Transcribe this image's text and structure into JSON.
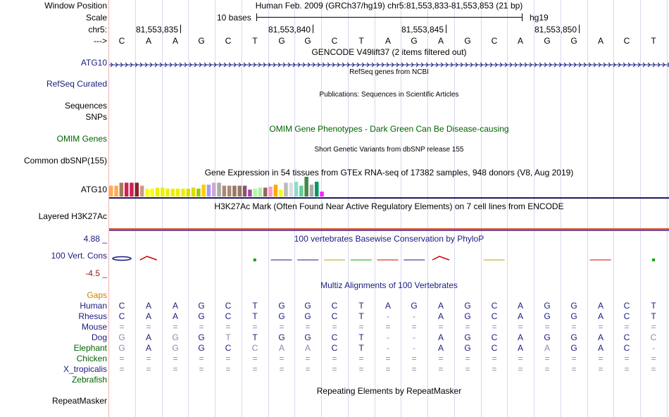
{
  "header": {
    "window_position_label": "Window Position",
    "scale_label": "Scale",
    "chrom_label": "chr5:",
    "arrow_label": "--->",
    "assembly_title": "Human Feb. 2009 (GRCh37/hg19)   chr5:81,553,833-81,553,853 (21 bp)",
    "scale_text": "10 bases",
    "scale_db": "hg19",
    "positions": [
      "81,553,835",
      "81,553,840",
      "81,553,845",
      "81,553,850"
    ],
    "sequence": [
      "C",
      "A",
      "A",
      "G",
      "C",
      "T",
      "G",
      "G",
      "C",
      "T",
      "A",
      "G",
      "A",
      "G",
      "C",
      "A",
      "G",
      "G",
      "A",
      "C",
      "T"
    ]
  },
  "tracks": {
    "gencode": {
      "title": "GENCODE V49lift37 (2 items filtered out)",
      "gene_label": "ATG10"
    },
    "refseq": {
      "title": "RefSeq genes from NCBI",
      "label": "RefSeq Curated"
    },
    "publications": {
      "title": "Publications: Sequences in Scientific Articles",
      "label1": "Sequences",
      "label2": "SNPs"
    },
    "omim": {
      "title": "OMIM Gene Phenotypes - Dark Green Can Be Disease-causing",
      "label": "OMIM Genes",
      "color": "#006400"
    },
    "dbsnp": {
      "title": "Short Genetic Variants from dbSNP release 155",
      "label": "Common dbSNP(155)"
    },
    "gtex": {
      "title": "Gene Expression in 54 tissues from GTEx RNA-seq of 17382 samples, 948 donors (V8, Aug 2019)",
      "label": "ATG10",
      "bar_colors": [
        "#FFAA55",
        "#FFAA55",
        "#AA7755",
        "#CC2255",
        "#CC2255",
        "#882222",
        "#CC9988",
        "#FFFF00",
        "#FFFF00",
        "#EEEE00",
        "#EEEE00",
        "#EEEE00",
        "#EEEE00",
        "#EEEE00",
        "#EEEE00",
        "#DDDD00",
        "#DDDD00",
        "#99CC00",
        "#FFCC00",
        "#AA99FF",
        "#CCAACC",
        "#AAAAAA",
        "#AA8877",
        "#AA8877",
        "#997766",
        "#997766",
        "#885566",
        "#AA44AA",
        "#AAFF99",
        "#AAEEAA",
        "#996655",
        "#FF99CC",
        "#FFAA00",
        "#FFFF00",
        "#BBBBBB",
        "#DDDDDD",
        "#88DDCC",
        "#66CC99",
        "#448844",
        "#AAAAAA",
        "#009966",
        "#FF22FF"
      ],
      "bar_values": [
        0.55,
        0.55,
        0.7,
        0.7,
        0.7,
        0.7,
        0.55,
        0.4,
        0.4,
        0.45,
        0.45,
        0.4,
        0.4,
        0.4,
        0.4,
        0.4,
        0.45,
        0.4,
        0.6,
        0.6,
        0.7,
        0.7,
        0.55,
        0.55,
        0.55,
        0.55,
        0.55,
        0.35,
        0.4,
        0.45,
        0.45,
        0.5,
        0.6,
        0.35,
        0.7,
        0.7,
        0.75,
        0.55,
        1.0,
        0.6,
        0.75,
        0.25
      ]
    },
    "h3k27ac": {
      "title": "H3K27Ac Mark (Often Found Near Active Regulatory Elements) on 7 cell lines from ENCODE",
      "label": "Layered H3K27Ac"
    },
    "conservation": {
      "title": "100 vertebrates Basewise Conservation by PhyloP",
      "label": "100 Vert. Cons",
      "max": "4.88 _",
      "min": "-4.5 _"
    },
    "multiz": {
      "title": "Multiz Alignments of 100 Vertebrates",
      "gaps_label": "Gaps",
      "species": [
        {
          "name": "Human",
          "bases": [
            "C",
            "A",
            "A",
            "G",
            "C",
            "T",
            "G",
            "G",
            "C",
            "T",
            "A",
            "G",
            "A",
            "G",
            "C",
            "A",
            "G",
            "G",
            "A",
            "C",
            "T"
          ]
        },
        {
          "name": "Rhesus",
          "bases": [
            "C",
            "A",
            "A",
            "G",
            "C",
            "T",
            "G",
            "G",
            "C",
            "T",
            "-",
            "-",
            "A",
            "G",
            "C",
            "A",
            "G",
            "G",
            "A",
            "C",
            "T"
          ]
        },
        {
          "name": "Mouse",
          "bases": [
            "=",
            "=",
            "=",
            "=",
            "=",
            "=",
            "=",
            "=",
            "=",
            "=",
            "=",
            "=",
            "=",
            "=",
            "=",
            "=",
            "=",
            "=",
            "=",
            "=",
            "="
          ]
        },
        {
          "name": "Dog",
          "bases": [
            "G",
            "A",
            "G",
            "G",
            "T",
            "T",
            "G",
            "G",
            "C",
            "T",
            "-",
            "-",
            "A",
            "G",
            "C",
            "A",
            "G",
            "G",
            "A",
            "C",
            "C"
          ]
        },
        {
          "name": "Elephant",
          "bases": [
            "G",
            "A",
            "G",
            "G",
            "C",
            "C",
            "A",
            "A",
            "C",
            "T",
            "-",
            "-",
            "A",
            "G",
            "C",
            "A",
            "A",
            "G",
            "A",
            "C",
            "-"
          ]
        },
        {
          "name": "Chicken",
          "bases": [
            "=",
            "=",
            "=",
            "=",
            "=",
            "=",
            "=",
            "=",
            "=",
            "=",
            "=",
            "=",
            "=",
            "=",
            "=",
            "=",
            "=",
            "=",
            "=",
            "=",
            "="
          ]
        },
        {
          "name": "X_tropicalis",
          "bases": [
            "=",
            "=",
            "=",
            "=",
            "=",
            "=",
            "=",
            "=",
            "=",
            "=",
            "=",
            "=",
            "=",
            "=",
            "=",
            "=",
            "=",
            "=",
            "=",
            "=",
            "="
          ]
        },
        {
          "name": "Zebrafish",
          "bases": []
        }
      ]
    },
    "repeatmasker": {
      "title": "Repeating Elements by RepeatMasker",
      "label": "RepeatMasker"
    }
  }
}
